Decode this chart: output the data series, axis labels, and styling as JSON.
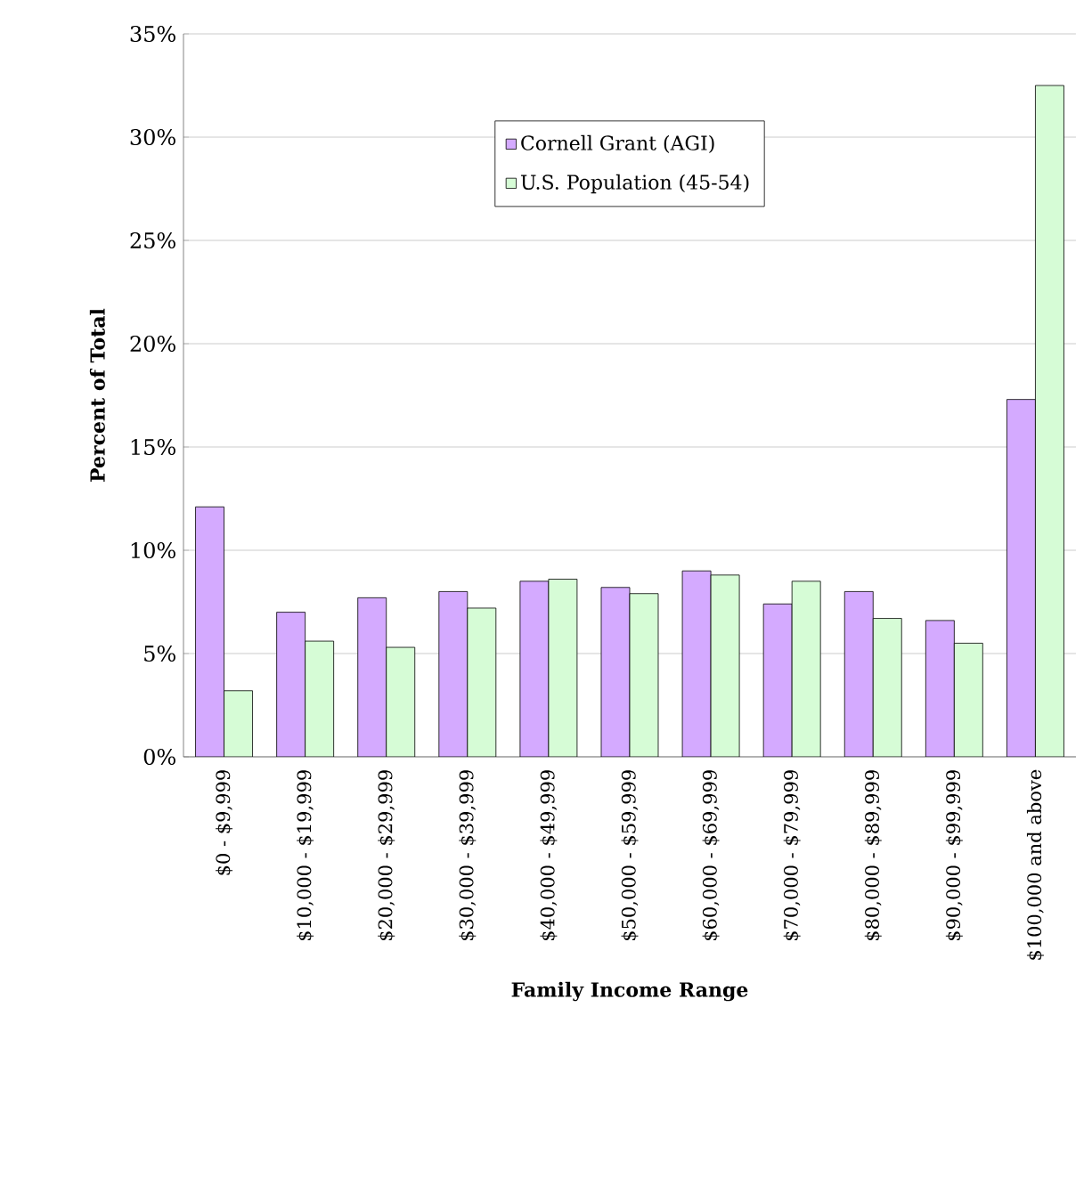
{
  "chart_data": {
    "type": "bar",
    "xlabel": "Family Income Range",
    "ylabel": "Percent of Total",
    "categories": [
      "$0 - $9,999",
      "$10,000 - $19,999",
      "$20,000 - $29,999",
      "$30,000 - $39,999",
      "$40,000 - $49,999",
      "$50,000 - $59,999",
      "$60,000 - $69,999",
      "$70,000 - $79,999",
      "$80,000 - $89,999",
      "$90,000 - $99,999",
      "$100,000 and above"
    ],
    "series": [
      {
        "name": "Cornell Grant (AGI)",
        "color": "#d4aaff",
        "values": [
          12.1,
          7.0,
          7.7,
          8.0,
          8.5,
          8.2,
          9.0,
          7.4,
          8.0,
          6.6,
          17.3
        ]
      },
      {
        "name": "U.S. Population (45-54)",
        "color": "#d6fcd6",
        "values": [
          3.2,
          5.6,
          5.3,
          7.2,
          8.6,
          7.9,
          8.8,
          8.5,
          6.7,
          5.5,
          32.5
        ]
      }
    ],
    "ylim": [
      0,
      35
    ],
    "yticks": [
      {
        "value": 0,
        "label": "0%"
      },
      {
        "value": 5,
        "label": "5%"
      },
      {
        "value": 10,
        "label": "10%"
      },
      {
        "value": 15,
        "label": "15%"
      },
      {
        "value": 20,
        "label": "20%"
      },
      {
        "value": 25,
        "label": "25%"
      },
      {
        "value": 30,
        "label": "30%"
      },
      {
        "value": 35,
        "label": "35%"
      }
    ],
    "grid": "y",
    "legend": "top"
  }
}
